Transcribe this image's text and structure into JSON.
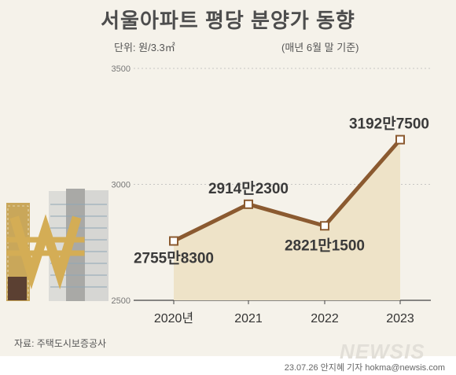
{
  "title": "서울아파트 평당 분양가 동향",
  "unit": "단위: 원/3.3㎡",
  "basis": "(매년 6월 말 기준)",
  "source": "자료: 주택도시보증공사",
  "credit": "23.07.26 안지혜 기자 hokma@newsis.com",
  "watermark": "NEWSIS",
  "colors": {
    "line": "#8b5a30",
    "area": "#eee3c8",
    "grid": "#b8b8b8",
    "won_sign": "#d4ad55"
  },
  "chart_data": {
    "type": "area",
    "title": "서울아파트 평당 분양가 동향",
    "ylabel": "단위: 원/3.3㎡",
    "ylim": [
      2500,
      3500
    ],
    "yticks": [
      "3500",
      "3000",
      "2500"
    ],
    "grid": true,
    "categories": [
      "2020년",
      "2021",
      "2022",
      "2023"
    ],
    "values": [
      2755.83,
      2914.23,
      2821.15,
      3192.75
    ],
    "data_labels": [
      "2755만8300",
      "2914만2300",
      "2821만1500",
      "3192만7500"
    ]
  }
}
